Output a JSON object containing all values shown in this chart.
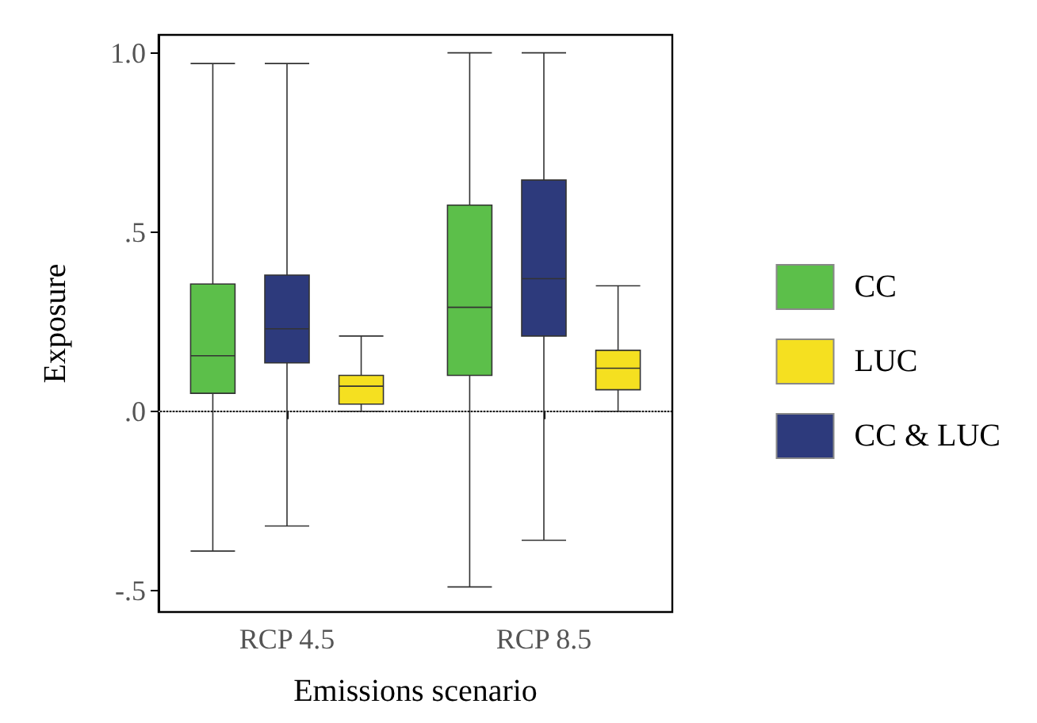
{
  "chart_data": {
    "type": "box",
    "xlabel": "Emissions scenario",
    "ylabel": "Exposure",
    "categories": [
      "RCP 4.5",
      "RCP 8.5"
    ],
    "ylim": [
      -0.56,
      1.05
    ],
    "yticks": [
      {
        "value": -0.5,
        "label": "-.5"
      },
      {
        "value": 0,
        "label": ".0"
      },
      {
        "value": 0.5,
        "label": ".5"
      },
      {
        "value": 1,
        "label": "1.0"
      }
    ],
    "grid": false,
    "legend": "right",
    "ref_lines": [
      {
        "axis": "y",
        "value": 0,
        "label": null,
        "color": "#aaaaaa",
        "line_style": "dotted"
      }
    ],
    "series": [
      {
        "name": "CC",
        "color": "#5cbf4a",
        "boxes": [
          {
            "low": -0.39,
            "q1": 0.05,
            "median": 0.155,
            "q3": 0.355,
            "high": 0.97
          },
          {
            "low": -0.49,
            "q1": 0.1,
            "median": 0.29,
            "q3": 0.575,
            "high": 1.0
          }
        ]
      },
      {
        "name": "LUC",
        "color": "#f5e020",
        "boxes": [
          {
            "low": 0.0,
            "q1": 0.02,
            "median": 0.07,
            "q3": 0.1,
            "high": 0.21
          },
          {
            "low": 0.0,
            "q1": 0.06,
            "median": 0.12,
            "q3": 0.17,
            "high": 0.35
          }
        ]
      },
      {
        "name": "CC & LUC",
        "color": "#2d3a7c",
        "boxes": [
          {
            "low": -0.32,
            "q1": 0.135,
            "median": 0.23,
            "q3": 0.38,
            "high": 0.97
          },
          {
            "low": -0.36,
            "q1": 0.21,
            "median": 0.37,
            "q3": 0.645,
            "high": 1.0
          }
        ]
      }
    ]
  }
}
